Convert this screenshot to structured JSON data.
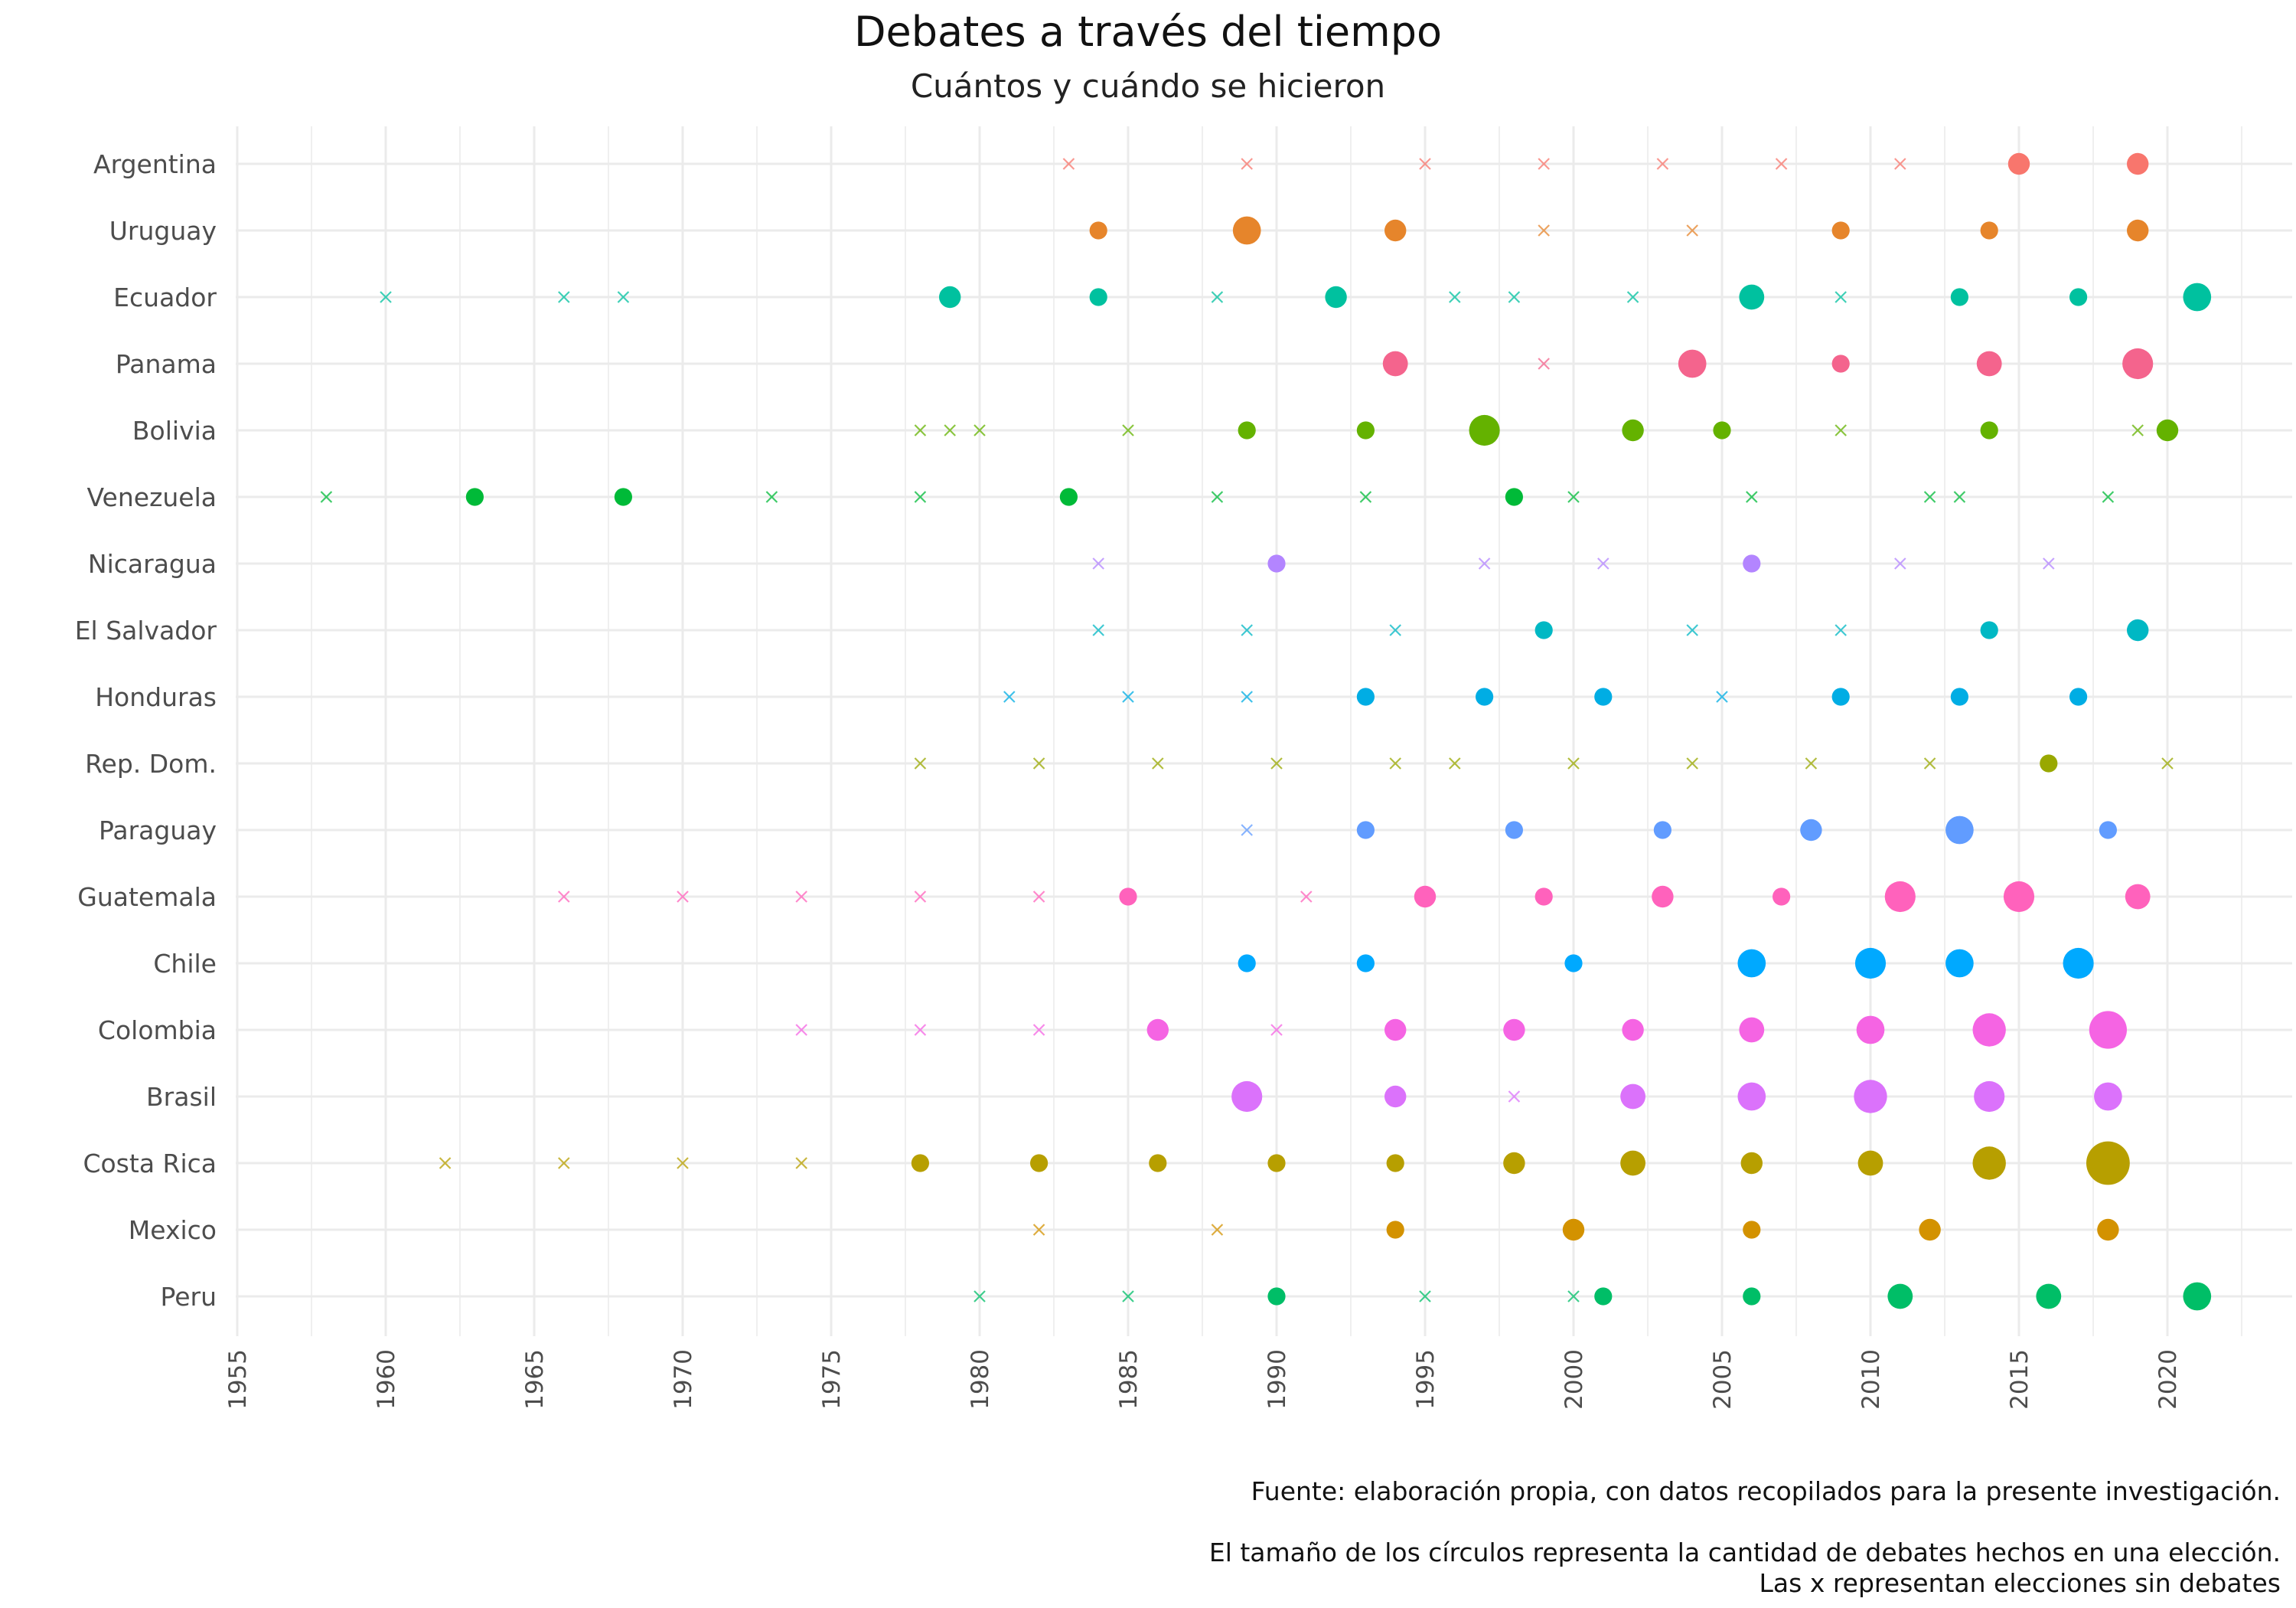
{
  "chart_data": {
    "type": "scatter",
    "title": "Debates a través del tiempo",
    "subtitle": "Cuántos y cuándo se hicieron",
    "xlabel": "",
    "ylabel": "",
    "xlim": [
      1954.5,
      2024
    ],
    "x_ticks": [
      1955,
      1960,
      1965,
      1970,
      1975,
      1980,
      1985,
      1990,
      1995,
      2000,
      2005,
      2010,
      2015,
      2020
    ],
    "grid": true,
    "legend": "none",
    "marker_meaning": {
      "circle": "número de debates en la elección (tamaño)",
      "x": "elección sin debates"
    },
    "captions": [
      "Fuente: elaboración propia, con datos recopilados para la presente investigación.",
      "El tamaño de los círculos representa la cantidad de debates hechos en una elección.",
      "Las x representan elecciones sin debates"
    ],
    "series": [
      {
        "name": "Argentina",
        "color": "#F8766D",
        "elections": [
          [
            1983,
            0
          ],
          [
            1989,
            0
          ],
          [
            1995,
            0
          ],
          [
            1999,
            0
          ],
          [
            2003,
            0
          ],
          [
            2007,
            0
          ],
          [
            2011,
            0
          ],
          [
            2015,
            3
          ],
          [
            2019,
            3
          ]
        ]
      },
      {
        "name": "Uruguay",
        "color": "#E6852B",
        "elections": [
          [
            1984,
            2
          ],
          [
            1989,
            5
          ],
          [
            1994,
            3
          ],
          [
            1999,
            0
          ],
          [
            2004,
            0
          ],
          [
            2009,
            2
          ],
          [
            2014,
            2
          ],
          [
            2019,
            3
          ]
        ]
      },
      {
        "name": "Ecuador",
        "color": "#00C19F",
        "elections": [
          [
            1960,
            0
          ],
          [
            1966,
            0
          ],
          [
            1968,
            0
          ],
          [
            1979,
            3
          ],
          [
            1984,
            2
          ],
          [
            1988,
            0
          ],
          [
            1992,
            3
          ],
          [
            1996,
            0
          ],
          [
            1998,
            0
          ],
          [
            2002,
            0
          ],
          [
            2006,
            4
          ],
          [
            2009,
            0
          ],
          [
            2013,
            2
          ],
          [
            2017,
            2
          ],
          [
            2021,
            5
          ]
        ]
      },
      {
        "name": "Panama",
        "color": "#F4648D",
        "elections": [
          [
            1994,
            4
          ],
          [
            1999,
            0
          ],
          [
            2004,
            5
          ],
          [
            2009,
            2
          ],
          [
            2014,
            4
          ],
          [
            2019,
            6
          ]
        ]
      },
      {
        "name": "Bolivia",
        "color": "#64B200",
        "elections": [
          [
            1978,
            0
          ],
          [
            1979,
            0
          ],
          [
            1980,
            0
          ],
          [
            1985,
            0
          ],
          [
            1989,
            2
          ],
          [
            1993,
            2
          ],
          [
            1997,
            6
          ],
          [
            2002,
            3
          ],
          [
            2005,
            2
          ],
          [
            2009,
            0
          ],
          [
            2014,
            2
          ],
          [
            2019,
            0
          ],
          [
            2020,
            3
          ]
        ]
      },
      {
        "name": "Venezuela",
        "color": "#00BA38",
        "elections": [
          [
            1958,
            0
          ],
          [
            1963,
            2
          ],
          [
            1968,
            2
          ],
          [
            1973,
            0
          ],
          [
            1978,
            0
          ],
          [
            1983,
            2
          ],
          [
            1988,
            0
          ],
          [
            1993,
            0
          ],
          [
            1998,
            2
          ],
          [
            2000,
            0
          ],
          [
            2006,
            0
          ],
          [
            2012,
            0
          ],
          [
            2013,
            0
          ],
          [
            2018,
            0
          ]
        ]
      },
      {
        "name": "Nicaragua",
        "color": "#B385FF",
        "elections": [
          [
            1984,
            0
          ],
          [
            1990,
            2
          ],
          [
            1997,
            0
          ],
          [
            2001,
            0
          ],
          [
            2006,
            2
          ],
          [
            2011,
            0
          ],
          [
            2016,
            0
          ]
        ]
      },
      {
        "name": "El Salvador",
        "color": "#00B8C4",
        "elections": [
          [
            1984,
            0
          ],
          [
            1989,
            0
          ],
          [
            1994,
            0
          ],
          [
            1999,
            2
          ],
          [
            2004,
            0
          ],
          [
            2009,
            0
          ],
          [
            2014,
            2
          ],
          [
            2019,
            3
          ]
        ]
      },
      {
        "name": "Honduras",
        "color": "#00ADE4",
        "elections": [
          [
            1981,
            0
          ],
          [
            1985,
            0
          ],
          [
            1989,
            0
          ],
          [
            1993,
            2
          ],
          [
            1997,
            2
          ],
          [
            2001,
            2
          ],
          [
            2005,
            0
          ],
          [
            2009,
            2
          ],
          [
            2013,
            2
          ],
          [
            2017,
            2
          ]
        ]
      },
      {
        "name": "Rep. Dom.",
        "color": "#99A800",
        "elections": [
          [
            1978,
            0
          ],
          [
            1982,
            0
          ],
          [
            1986,
            0
          ],
          [
            1990,
            0
          ],
          [
            1994,
            0
          ],
          [
            1996,
            0
          ],
          [
            2000,
            0
          ],
          [
            2004,
            0
          ],
          [
            2008,
            0
          ],
          [
            2012,
            0
          ],
          [
            2016,
            2
          ],
          [
            2020,
            0
          ]
        ]
      },
      {
        "name": "Paraguay",
        "color": "#619CFF",
        "elections": [
          [
            1989,
            0
          ],
          [
            1993,
            2
          ],
          [
            1998,
            2
          ],
          [
            2003,
            2
          ],
          [
            2008,
            3
          ],
          [
            2013,
            5
          ],
          [
            2018,
            2
          ]
        ]
      },
      {
        "name": "Guatemala",
        "color": "#FF62BC",
        "elections": [
          [
            1966,
            0
          ],
          [
            1970,
            0
          ],
          [
            1974,
            0
          ],
          [
            1978,
            0
          ],
          [
            1982,
            0
          ],
          [
            1985,
            2
          ],
          [
            1991,
            0
          ],
          [
            1995,
            3
          ],
          [
            1999,
            2
          ],
          [
            2003,
            3
          ],
          [
            2007,
            2
          ],
          [
            2011,
            6
          ],
          [
            2015,
            6
          ],
          [
            2019,
            4
          ]
        ]
      },
      {
        "name": "Chile",
        "color": "#00A9FF",
        "elections": [
          [
            1989,
            2
          ],
          [
            1993,
            2
          ],
          [
            2000,
            2
          ],
          [
            2006,
            5
          ],
          [
            2010,
            6
          ],
          [
            2013,
            5
          ],
          [
            2017,
            6
          ]
        ]
      },
      {
        "name": "Colombia",
        "color": "#F564E3",
        "elections": [
          [
            1974,
            0
          ],
          [
            1978,
            0
          ],
          [
            1982,
            0
          ],
          [
            1986,
            3
          ],
          [
            1990,
            0
          ],
          [
            1994,
            3
          ],
          [
            1998,
            3
          ],
          [
            2002,
            3
          ],
          [
            2006,
            4
          ],
          [
            2010,
            5
          ],
          [
            2014,
            7
          ],
          [
            2018,
            9
          ]
        ]
      },
      {
        "name": "Brasil",
        "color": "#DB72FB",
        "elections": [
          [
            1989,
            6
          ],
          [
            1994,
            3
          ],
          [
            1998,
            0
          ],
          [
            2002,
            4
          ],
          [
            2006,
            5
          ],
          [
            2010,
            7
          ],
          [
            2014,
            6
          ],
          [
            2018,
            5
          ]
        ]
      },
      {
        "name": "Costa Rica",
        "color": "#B79F00",
        "elections": [
          [
            1962,
            0
          ],
          [
            1966,
            0
          ],
          [
            1970,
            0
          ],
          [
            1974,
            0
          ],
          [
            1978,
            2
          ],
          [
            1982,
            2
          ],
          [
            1986,
            2
          ],
          [
            1990,
            2
          ],
          [
            1994,
            2
          ],
          [
            1998,
            3
          ],
          [
            2002,
            4
          ],
          [
            2006,
            3
          ],
          [
            2010,
            4
          ],
          [
            2014,
            7
          ],
          [
            2018,
            12
          ]
        ]
      },
      {
        "name": "Mexico",
        "color": "#D39200",
        "elections": [
          [
            1982,
            0
          ],
          [
            1988,
            0
          ],
          [
            1994,
            2
          ],
          [
            2000,
            3
          ],
          [
            2006,
            2
          ],
          [
            2012,
            3
          ],
          [
            2018,
            3
          ]
        ]
      },
      {
        "name": "Peru",
        "color": "#00BE67",
        "elections": [
          [
            1980,
            0
          ],
          [
            1985,
            0
          ],
          [
            1990,
            2
          ],
          [
            1995,
            0
          ],
          [
            2000,
            0
          ],
          [
            2001,
            2
          ],
          [
            2006,
            2
          ],
          [
            2011,
            4
          ],
          [
            2016,
            4
          ],
          [
            2021,
            5
          ]
        ]
      }
    ]
  }
}
